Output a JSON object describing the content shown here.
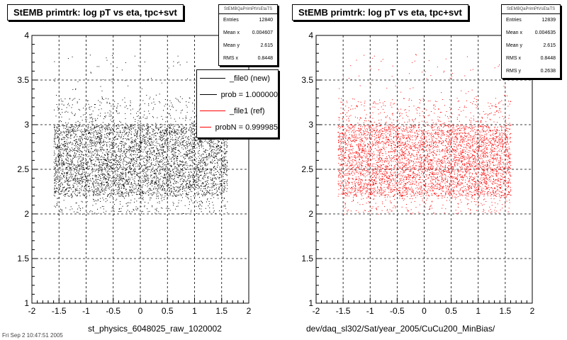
{
  "chart_data": [
    {
      "type": "scatter",
      "title": "StEMB primtrk: log pT vs eta, tpc+svt",
      "xlabel": "st_physics_6048025_raw_1020002",
      "ylabel": "",
      "xlim": [
        -2,
        2
      ],
      "ylim": [
        1,
        4
      ],
      "x_ticks": [
        "-2",
        "-1.5",
        "-1",
        "-0.5",
        "0",
        "0.5",
        "1",
        "1.5",
        "2"
      ],
      "y_ticks": [
        "1",
        "1.5",
        "2",
        "2.5",
        "3",
        "3.5",
        "4"
      ],
      "grid": true,
      "point_color": "#000000",
      "point_region": {
        "x": [
          -1.6,
          1.6
        ],
        "y": [
          2.0,
          3.3
        ],
        "core_y": [
          2.2,
          3.0
        ]
      },
      "stats": {
        "name": "StEMBQaPrimPtVsEtaTS",
        "rows": [
          {
            "label": "Entries",
            "value": "12840"
          },
          {
            "label": "Mean x",
            "value": "0.004607"
          },
          {
            "label": "Mean y",
            "value": "2.615"
          },
          {
            "label": "RMS x",
            "value": "0.8448"
          }
        ]
      },
      "legend": {
        "placement": "top-right",
        "entries": [
          {
            "text": "_file0 (new)",
            "color": "#000000"
          },
          {
            "text": "prob = 1.000000",
            "color": "#000000"
          },
          {
            "text": "_file1 (ref)",
            "color": "#ff0000"
          },
          {
            "text": "probN = 0.999985",
            "color": "#ff0000"
          }
        ]
      }
    },
    {
      "type": "scatter",
      "title": "StEMB primtrk: log pT vs eta, tpc+svt",
      "xlabel": "dev/daq_sl302/Sat/year_2005/CuCu200_MinBias/",
      "ylabel": "",
      "xlim": [
        -2,
        2
      ],
      "ylim": [
        1,
        4
      ],
      "x_ticks": [
        "-2",
        "-1.5",
        "-1",
        "-0.5",
        "0",
        "0.5",
        "1",
        "1.5",
        "2"
      ],
      "y_ticks": [
        "1",
        "1.5",
        "2",
        "2.5",
        "3",
        "3.5",
        "4"
      ],
      "grid": true,
      "point_color": "#ff0000",
      "point_region": {
        "x": [
          -1.6,
          1.6
        ],
        "y": [
          2.0,
          3.3
        ],
        "core_y": [
          2.2,
          3.0
        ]
      },
      "stats": {
        "name": "StEMBQaPrimPtVsEtaTS",
        "rows": [
          {
            "label": "Entries",
            "value": "12839"
          },
          {
            "label": "Mean x",
            "value": "0.004635"
          },
          {
            "label": "Mean y",
            "value": "2.615"
          },
          {
            "label": "RMS x",
            "value": "0.8448"
          },
          {
            "label": "RMS y",
            "value": "0.2638"
          }
        ]
      }
    }
  ],
  "footer": "Fri Sep 2 10:47:51 2005"
}
